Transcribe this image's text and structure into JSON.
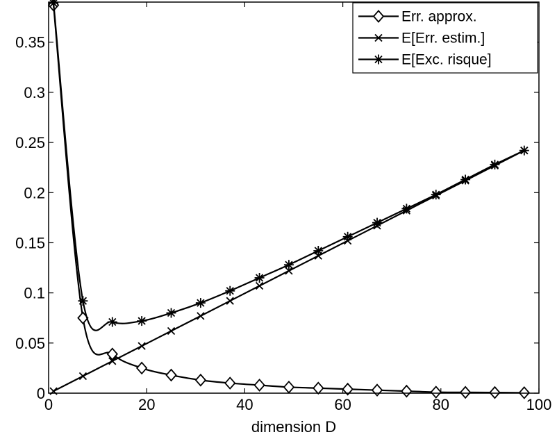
{
  "chart_data": {
    "type": "line",
    "title": "",
    "xlabel": "dimension D",
    "ylabel": "",
    "xlim": [
      0,
      100
    ],
    "ylim": [
      0,
      0.39
    ],
    "xticks": [
      0,
      20,
      40,
      60,
      80,
      100
    ],
    "yticks": [
      0,
      0.05,
      0.1,
      0.15,
      0.2,
      0.25,
      0.3,
      0.35
    ],
    "xtick_labels": [
      "0",
      "20",
      "40",
      "60",
      "80",
      "100"
    ],
    "ytick_labels": [
      "0",
      "0.05",
      "0.1",
      "0.15",
      "0.2",
      "0.25",
      "0.3",
      "0.35"
    ],
    "grid": false,
    "legend_position": "top-right",
    "series": [
      {
        "name": "Err. approx.",
        "marker": "diamond",
        "color": "#000000",
        "x": [
          1,
          7,
          13,
          19,
          25,
          31,
          37,
          43,
          49,
          55,
          61,
          67,
          73,
          79,
          85,
          91,
          97
        ],
        "y": [
          0.387,
          0.075,
          0.039,
          0.025,
          0.018,
          0.013,
          0.01,
          0.008,
          0.006,
          0.005,
          0.004,
          0.003,
          0.002,
          0.001,
          0.0008,
          0.0006,
          0.0004
        ]
      },
      {
        "name": "E[Err. estim.]",
        "marker": "x",
        "color": "#000000",
        "x": [
          1,
          7,
          13,
          19,
          25,
          31,
          37,
          43,
          49,
          55,
          61,
          67,
          73,
          79,
          85,
          91,
          97
        ],
        "y": [
          0.002,
          0.017,
          0.032,
          0.047,
          0.062,
          0.077,
          0.092,
          0.107,
          0.122,
          0.137,
          0.152,
          0.167,
          0.182,
          0.197,
          0.212,
          0.227,
          0.242
        ]
      },
      {
        "name": "E[Exc. risque]",
        "marker": "star",
        "color": "#000000",
        "x": [
          1,
          7,
          13,
          19,
          25,
          31,
          37,
          43,
          49,
          55,
          61,
          67,
          73,
          79,
          85,
          91,
          97
        ],
        "y": [
          0.389,
          0.092,
          0.071,
          0.072,
          0.08,
          0.09,
          0.102,
          0.115,
          0.128,
          0.142,
          0.156,
          0.17,
          0.184,
          0.198,
          0.213,
          0.228,
          0.242
        ]
      }
    ]
  }
}
